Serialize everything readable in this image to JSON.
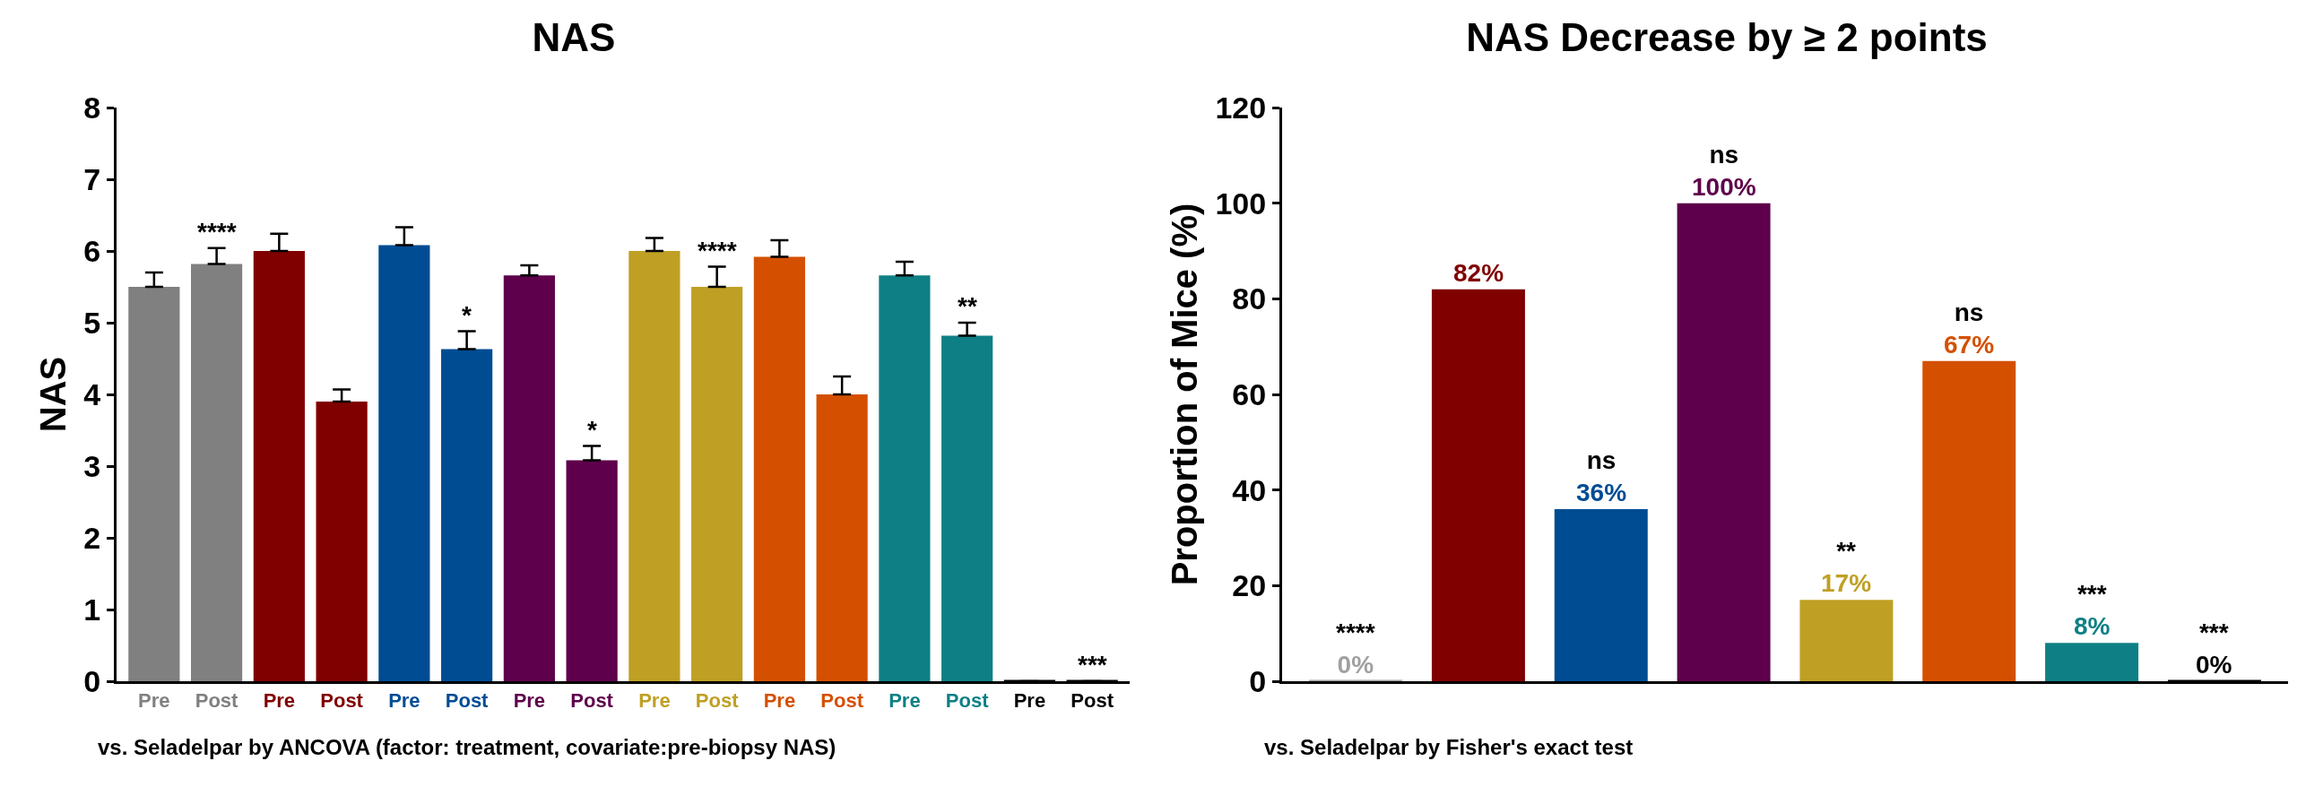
{
  "chart_data": [
    {
      "type": "bar",
      "title": "NAS",
      "ylabel": "NAS",
      "categories": [
        "Pre",
        "Post",
        "Pre",
        "Post",
        "Pre",
        "Post",
        "Pre",
        "Post",
        "Pre",
        "Post",
        "Pre",
        "Post",
        "Pre",
        "Post",
        "Pre",
        "Post"
      ],
      "values": [
        5.5,
        5.82,
        6.0,
        3.9,
        6.08,
        4.63,
        5.66,
        3.08,
        6.0,
        5.5,
        5.92,
        4.0,
        5.66,
        4.82,
        0,
        0
      ],
      "errors": [
        0.2,
        0.22,
        0.24,
        0.17,
        0.25,
        0.25,
        0.14,
        0.2,
        0.18,
        0.28,
        0.23,
        0.25,
        0.19,
        0.18,
        null,
        null
      ],
      "colors": [
        "#808080",
        "#808080",
        "#800000",
        "#800000",
        "#004c93",
        "#004c93",
        "#5e004b",
        "#5e004b",
        "#bfa024",
        "#bfa024",
        "#d45000",
        "#d45000",
        "#0e8085",
        "#0e8085",
        "#000000",
        "#000000"
      ],
      "value_labels": [
        null,
        "****",
        null,
        null,
        null,
        "*",
        null,
        "*",
        null,
        "****",
        null,
        null,
        null,
        "**",
        null,
        "***"
      ],
      "ylim": [
        0,
        8
      ],
      "yticks": [
        0,
        1,
        2,
        3,
        4,
        5,
        6,
        7,
        8
      ],
      "legend": false,
      "annotations": [
        "vs. Seladelpar by ANCOVA (factor: treatment, covariate:pre-biopsy NAS)"
      ]
    },
    {
      "type": "bar",
      "title": "NAS Decrease by ≥ 2 points",
      "ylabel": "Proportion of Mice (%)",
      "categories": [
        null,
        null,
        null,
        null,
        null,
        null,
        null,
        null
      ],
      "values": [
        0,
        82,
        36,
        100,
        17,
        67,
        8,
        0
      ],
      "colors": [
        "#a0a0a0",
        "#800000",
        "#004c93",
        "#5e004b",
        "#bfa024",
        "#d45000",
        "#0e8085",
        "#000000"
      ],
      "value_labels": [
        "****\n0%",
        "82%",
        "ns\n36%",
        "ns\n100%",
        "**\n17%",
        "ns\n67%",
        "***\n8%",
        "***\n0%"
      ],
      "ylim": [
        0,
        120
      ],
      "yticks": [
        0,
        20,
        40,
        60,
        80,
        100,
        120
      ],
      "legend": false,
      "tick_labels": "y",
      "annotations": [
        "vs. Seladelpar by Fisher's exact test"
      ]
    }
  ]
}
